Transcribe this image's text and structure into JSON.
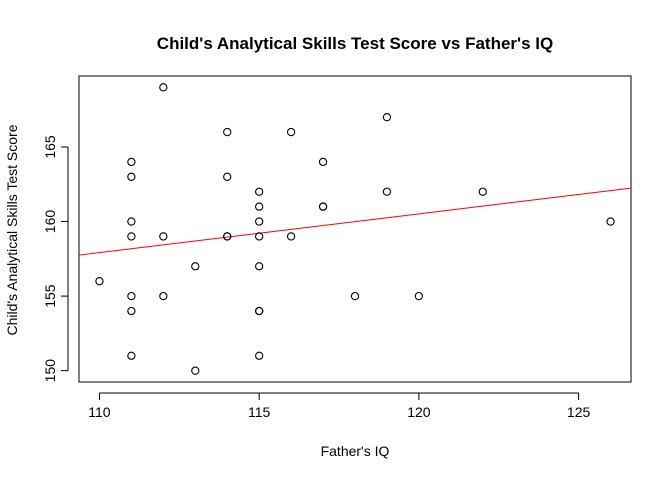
{
  "chart_data": {
    "type": "scatter",
    "title": "Child's Analytical Skills Test Score vs Father's IQ",
    "xlabel": "Father's IQ",
    "ylabel": "Child's Analytical Skills Test Score",
    "xlim": [
      109.36,
      126.64
    ],
    "ylim": [
      149.24,
      169.76
    ],
    "xticks": [
      110,
      115,
      120,
      125
    ],
    "yticks": [
      150,
      155,
      160,
      165
    ],
    "grid": false,
    "series": [
      {
        "points": [
          [
            110,
            156
          ],
          [
            111,
            164
          ],
          [
            111,
            163
          ],
          [
            111,
            160
          ],
          [
            111,
            159
          ],
          [
            111,
            155
          ],
          [
            111,
            154
          ],
          [
            111,
            151
          ],
          [
            112,
            169
          ],
          [
            112,
            159
          ],
          [
            112,
            155
          ],
          [
            113,
            157
          ],
          [
            113,
            150
          ],
          [
            114,
            166
          ],
          [
            114,
            163
          ],
          [
            114,
            159
          ],
          [
            114,
            159
          ],
          [
            115,
            162
          ],
          [
            115,
            161
          ],
          [
            115,
            160
          ],
          [
            115,
            159
          ],
          [
            115,
            157
          ],
          [
            115,
            154
          ],
          [
            115,
            154
          ],
          [
            115,
            151
          ],
          [
            116,
            166
          ],
          [
            116,
            159
          ],
          [
            117,
            164
          ],
          [
            117,
            161
          ],
          [
            117,
            161
          ],
          [
            118,
            155
          ],
          [
            119,
            167
          ],
          [
            119,
            162
          ],
          [
            120,
            155
          ],
          [
            122,
            162
          ],
          [
            126,
            160
          ]
        ],
        "color": "#000000"
      }
    ],
    "regression_line": {
      "intercept": 129.34,
      "slope": 0.2598,
      "color": "#ff0000"
    }
  }
}
